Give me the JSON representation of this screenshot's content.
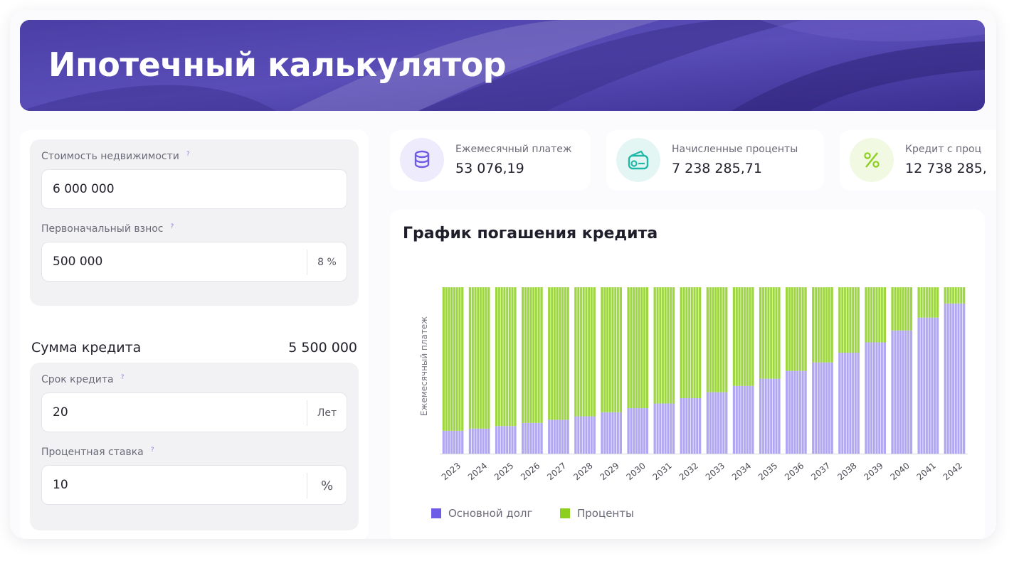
{
  "header": {
    "title": "Ипотечный калькулятор"
  },
  "form": {
    "price": {
      "label": "Стоимость недвижимости",
      "value": "6 000 000"
    },
    "down_payment": {
      "label": "Первоначальный взнос",
      "value": "500 000",
      "suffix": "8 %"
    },
    "loan_sum": {
      "label": "Сумма кредита",
      "value": "5 500 000"
    },
    "term": {
      "label": "Срок кредита",
      "value": "20",
      "suffix": "Лет"
    },
    "rate": {
      "label": "Процентная ставка",
      "value": "10",
      "suffix": "%"
    },
    "help_mark": "?"
  },
  "stats": [
    {
      "title": "Ежемесячный платеж",
      "value": "53 076,19",
      "icon": "coins-icon",
      "color": "#6f5ce6"
    },
    {
      "title": "Начисленные проценты",
      "value": "7 238 285,71",
      "icon": "wallet-icon",
      "color": "#22b8a8"
    },
    {
      "title": "Кредит с проц",
      "value": "12 738 285,",
      "icon": "percent-icon",
      "color": "#8ccf1e"
    }
  ],
  "chart_data": {
    "type": "bar",
    "stacked": true,
    "title": "График погашения кредита",
    "ylabel": "Ежемесячный платеж",
    "xlabel": "",
    "categories": [
      "2023",
      "2024",
      "2025",
      "2026",
      "2027",
      "2028",
      "2029",
      "2030",
      "2031",
      "2032",
      "2033",
      "2034",
      "2035",
      "2036",
      "2037",
      "2038",
      "2039",
      "2040",
      "2041",
      "2042"
    ],
    "series": [
      {
        "name": "Основной долг",
        "color": "#6f5ce6",
        "values": [
          7300,
          8000,
          8800,
          9800,
          10800,
          11900,
          13200,
          14500,
          16000,
          17700,
          19600,
          21600,
          23900,
          26400,
          29100,
          32200,
          35500,
          39300,
          43400,
          47900
        ]
      },
      {
        "name": "Проценты",
        "color": "#8ccf1e",
        "values": [
          45776,
          45076,
          44276,
          43276,
          42276,
          41176,
          39876,
          38576,
          37076,
          35376,
          33476,
          31476,
          29176,
          26676,
          23976,
          20876,
          17576,
          13776,
          9676,
          5176
        ]
      }
    ],
    "ylim": [
      0,
      53076
    ],
    "legend": "bottom-left",
    "grid": false
  }
}
